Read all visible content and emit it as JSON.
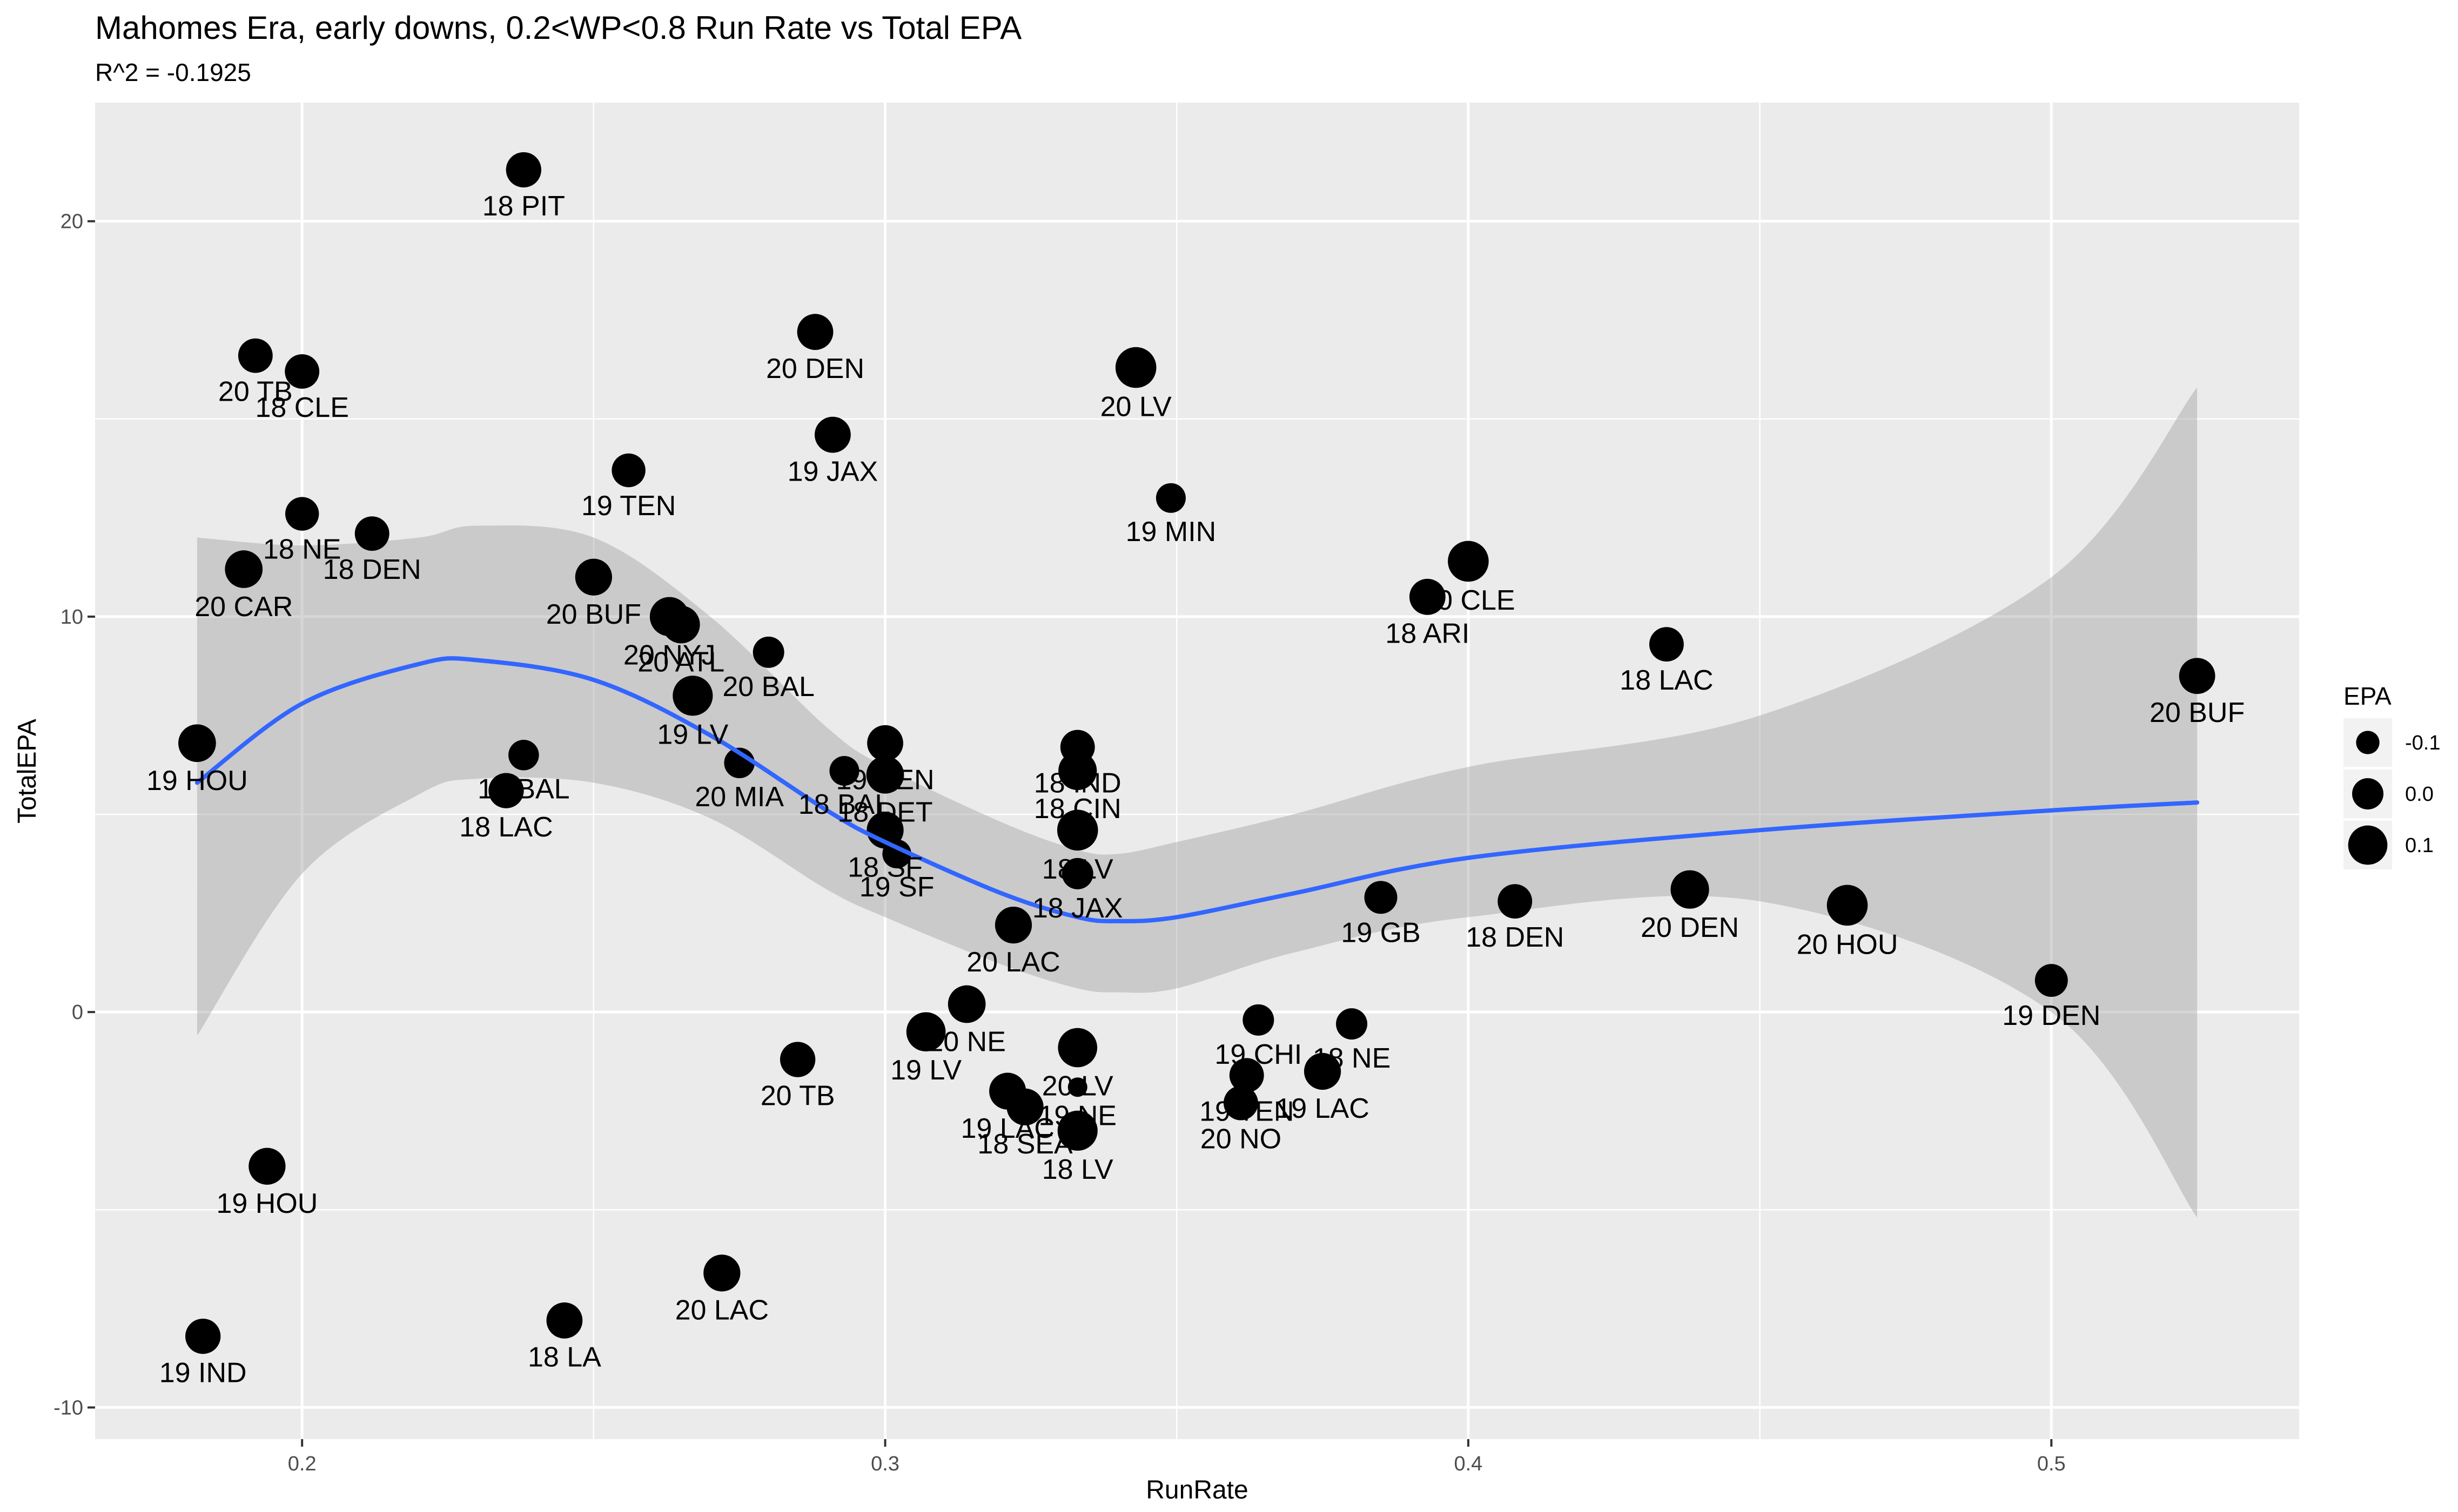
{
  "chart_data": {
    "type": "scatter",
    "title": "Mahomes Era, early downs, 0.2<WP<0.8 Run Rate vs Total EPA",
    "subtitle": "R^2 = -0.1925",
    "xlabel": "RunRate",
    "ylabel": "TotalEPA",
    "xlim": [
      0.1645,
      0.5425
    ],
    "ylim": [
      -10.8,
      23.0
    ],
    "xticks": [
      0.2,
      0.3,
      0.4,
      0.5
    ],
    "xtick_labels": [
      "0.2",
      "0.3",
      "0.4",
      "0.5"
    ],
    "yticks": [
      -10,
      0,
      10,
      20
    ],
    "ytick_labels": [
      "-10",
      "0",
      "10",
      "20"
    ],
    "grid": true,
    "legend": {
      "title": "EPA",
      "placement": "right",
      "items": [
        {
          "label": "-0.1",
          "value": -0.1
        },
        {
          "label": "0.0",
          "value": 0.0
        },
        {
          "label": "0.1",
          "value": 0.1
        }
      ]
    },
    "size_range": [
      -0.15,
      0.15
    ],
    "points": [
      {
        "label": "18 PIT",
        "x": 0.238,
        "y": 21.3,
        "epa": 0.05
      },
      {
        "label": "20 TB",
        "x": 0.192,
        "y": 16.6,
        "epa": 0.04
      },
      {
        "label": "18 CLE",
        "x": 0.2,
        "y": 16.2,
        "epa": 0.04
      },
      {
        "label": "20 DEN",
        "x": 0.288,
        "y": 17.2,
        "epa": 0.06
      },
      {
        "label": "20 LV",
        "x": 0.343,
        "y": 16.3,
        "epa": 0.12
      },
      {
        "label": "19 JAX",
        "x": 0.291,
        "y": 14.6,
        "epa": 0.06
      },
      {
        "label": "19 TEN",
        "x": 0.256,
        "y": 13.7,
        "epa": 0.03
      },
      {
        "label": "19 MIN",
        "x": 0.349,
        "y": 13.0,
        "epa": -0.02
      },
      {
        "label": "18 NE",
        "x": 0.2,
        "y": 12.6,
        "epa": 0.03
      },
      {
        "label": "18 DEN",
        "x": 0.212,
        "y": 12.1,
        "epa": 0.04
      },
      {
        "label": "20 CAR",
        "x": 0.19,
        "y": 11.2,
        "epa": 0.08
      },
      {
        "label": "20 BUF",
        "x": 0.25,
        "y": 11.0,
        "epa": 0.07
      },
      {
        "label": "20 CLE",
        "x": 0.4,
        "y": 11.4,
        "epa": 0.12
      },
      {
        "label": "18 ARI",
        "x": 0.393,
        "y": 10.5,
        "epa": 0.06
      },
      {
        "label": "20 NYJ",
        "x": 0.263,
        "y": 10.0,
        "epa": 0.1
      },
      {
        "label": "20 ATL",
        "x": 0.265,
        "y": 9.8,
        "epa": 0.08
      },
      {
        "label": "20 BAL",
        "x": 0.28,
        "y": 9.1,
        "epa": 0.0
      },
      {
        "label": "18 LAC",
        "x": 0.434,
        "y": 9.3,
        "epa": 0.04
      },
      {
        "label": "20 BUF",
        "x": 0.525,
        "y": 8.5,
        "epa": 0.06
      },
      {
        "label": "19 LV",
        "x": 0.267,
        "y": 8.0,
        "epa": 0.11
      },
      {
        "label": "19 HOU",
        "x": 0.182,
        "y": 6.8,
        "epa": 0.08
      },
      {
        "label": "19 BAL",
        "x": 0.238,
        "y": 6.5,
        "epa": -0.01
      },
      {
        "label": "18 LAC",
        "x": 0.235,
        "y": 5.6,
        "epa": 0.05
      },
      {
        "label": "20 MIA",
        "x": 0.275,
        "y": 6.3,
        "epa": -0.01
      },
      {
        "label": "19 DEN",
        "x": 0.3,
        "y": 6.8,
        "epa": 0.06
      },
      {
        "label": "18 BAL",
        "x": 0.293,
        "y": 6.1,
        "epa": -0.02
      },
      {
        "label": "18 DET",
        "x": 0.3,
        "y": 6.0,
        "epa": 0.08
      },
      {
        "label": "18 IND",
        "x": 0.333,
        "y": 6.7,
        "epa": 0.04
      },
      {
        "label": "18 CIN",
        "x": 0.333,
        "y": 6.1,
        "epa": 0.09
      },
      {
        "label": "18 SF",
        "x": 0.3,
        "y": 4.6,
        "epa": 0.07
      },
      {
        "label": "19 SF",
        "x": 0.302,
        "y": 4.0,
        "epa": -0.03
      },
      {
        "label": "18 LV",
        "x": 0.333,
        "y": 4.6,
        "epa": 0.12
      },
      {
        "label": "18 JAX",
        "x": 0.333,
        "y": 3.5,
        "epa": 0.0
      },
      {
        "label": "20 LAC",
        "x": 0.322,
        "y": 2.2,
        "epa": 0.07
      },
      {
        "label": "19 GB",
        "x": 0.385,
        "y": 2.9,
        "epa": 0.02
      },
      {
        "label": "18 DEN",
        "x": 0.408,
        "y": 2.8,
        "epa": 0.04
      },
      {
        "label": "20 DEN",
        "x": 0.438,
        "y": 3.1,
        "epa": 0.09
      },
      {
        "label": "20 HOU",
        "x": 0.465,
        "y": 2.7,
        "epa": 0.12
      },
      {
        "label": "19 DEN",
        "x": 0.5,
        "y": 0.8,
        "epa": 0.02
      },
      {
        "label": "20 NE",
        "x": 0.314,
        "y": 0.2,
        "epa": 0.08
      },
      {
        "label": "19 LV",
        "x": 0.307,
        "y": -0.5,
        "epa": 0.1
      },
      {
        "label": "20 TB",
        "x": 0.285,
        "y": -1.2,
        "epa": 0.05
      },
      {
        "label": "20 LV",
        "x": 0.333,
        "y": -0.9,
        "epa": 0.1
      },
      {
        "label": "19 CHI",
        "x": 0.364,
        "y": -0.2,
        "epa": 0.0
      },
      {
        "label": "18 NE",
        "x": 0.38,
        "y": -0.3,
        "epa": 0.0
      },
      {
        "label": "19 LAC",
        "x": 0.375,
        "y": -1.5,
        "epa": 0.07
      },
      {
        "label": "19 TEN",
        "x": 0.362,
        "y": -1.6,
        "epa": 0.04
      },
      {
        "label": "20 NO",
        "x": 0.361,
        "y": -2.3,
        "epa": 0.04
      },
      {
        "label": "19 LAC",
        "x": 0.321,
        "y": -2.0,
        "epa": 0.07
      },
      {
        "label": "19 NE",
        "x": 0.333,
        "y": -1.9,
        "epa": -0.15
      },
      {
        "label": "18 SEA",
        "x": 0.324,
        "y": -2.4,
        "epa": 0.07
      },
      {
        "label": "18 LV",
        "x": 0.333,
        "y": -3.0,
        "epa": 0.11
      },
      {
        "label": "19 HOU",
        "x": 0.194,
        "y": -3.9,
        "epa": 0.07
      },
      {
        "label": "20 LAC",
        "x": 0.272,
        "y": -6.6,
        "epa": 0.07
      },
      {
        "label": "18 LA",
        "x": 0.245,
        "y": -7.8,
        "epa": 0.06
      },
      {
        "label": "19 IND",
        "x": 0.183,
        "y": -8.2,
        "epa": 0.05
      }
    ],
    "smooth": {
      "method": "loess",
      "x": [
        0.182,
        0.2,
        0.22,
        0.23,
        0.25,
        0.27,
        0.29,
        0.3,
        0.32,
        0.333,
        0.34,
        0.35,
        0.37,
        0.4,
        0.45,
        0.5,
        0.525
      ],
      "y": [
        5.8,
        7.8,
        8.8,
        8.9,
        8.4,
        7.0,
        5.1,
        4.3,
        3.0,
        2.4,
        2.3,
        2.4,
        3.0,
        3.9,
        4.6,
        5.1,
        5.3
      ],
      "lower": [
        -0.6,
        3.5,
        5.5,
        5.9,
        5.8,
        4.9,
        3.1,
        2.4,
        1.2,
        0.6,
        0.5,
        0.6,
        1.5,
        2.4,
        2.8,
        0.0,
        -5.2
      ],
      "upper": [
        12.0,
        11.8,
        12.0,
        12.3,
        12.0,
        10.0,
        7.2,
        6.2,
        4.8,
        4.1,
        4.0,
        4.3,
        5.0,
        6.2,
        7.5,
        11.0,
        15.8
      ]
    }
  }
}
